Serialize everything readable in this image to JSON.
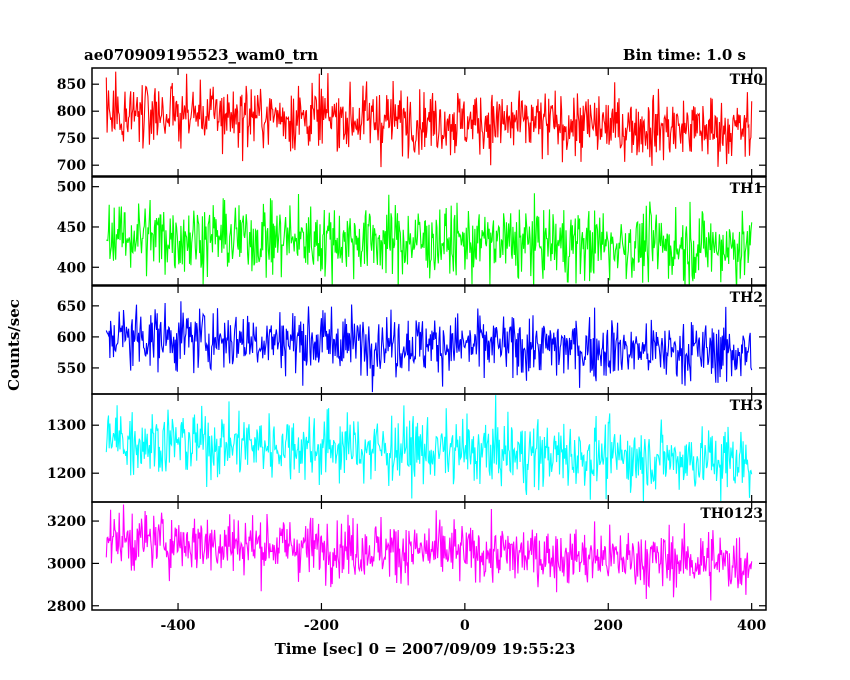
{
  "chart_data": {
    "type": "line",
    "title": "ae070909195523_wam0_trn",
    "subtitle": "Bin time: 1.0 s",
    "xlabel": "Time [sec] 0 = 2007/09/09 19:55:23",
    "ylabel": "Counts/sec",
    "xlim": [
      -520,
      420
    ],
    "xticks": [
      -400,
      -200,
      0,
      200,
      400
    ],
    "x_range": [
      -500,
      400
    ],
    "bin_time": 1.0,
    "grid": false,
    "panels": [
      {
        "name": "TH0",
        "color": "#ff0000",
        "ylim": [
          680,
          880
        ],
        "yticks": [
          700,
          750,
          800,
          850
        ],
        "mean_start": 800,
        "mean_end": 765,
        "spread": 30
      },
      {
        "name": "TH1",
        "color": "#00ff00",
        "ylim": [
          378,
          512
        ],
        "yticks": [
          400,
          450,
          500
        ],
        "mean_start": 440,
        "mean_end": 425,
        "spread": 22
      },
      {
        "name": "TH2",
        "color": "#0000ff",
        "ylim": [
          508,
          682
        ],
        "yticks": [
          550,
          600,
          650
        ],
        "mean_start": 602,
        "mean_end": 575,
        "spread": 25
      },
      {
        "name": "TH3",
        "color": "#00ffff",
        "ylim": [
          1140,
          1365
        ],
        "yticks": [
          1200,
          1300
        ],
        "mean_start": 1270,
        "mean_end": 1225,
        "spread": 35
      },
      {
        "name": "TH0123",
        "color": "#ff00ff",
        "ylim": [
          2780,
          3290
        ],
        "yticks": [
          2800,
          3000,
          3200
        ],
        "mean_start": 3115,
        "mean_end": 3000,
        "spread": 70
      }
    ]
  }
}
